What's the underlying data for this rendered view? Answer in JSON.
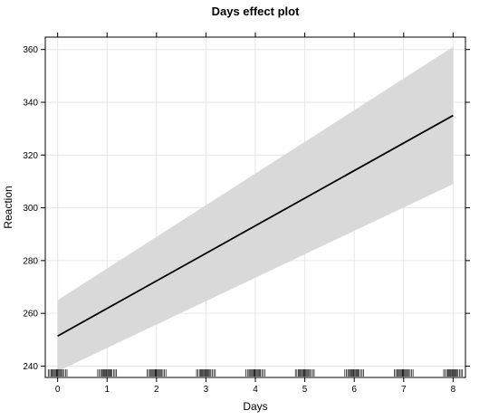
{
  "chart_data": {
    "type": "line",
    "title": "Days effect plot",
    "xlabel": "Days",
    "ylabel": "Reaction",
    "xlim": [
      -0.25,
      8.25
    ],
    "ylim": [
      235.7,
      364.7
    ],
    "x_ticks": [
      0,
      1,
      2,
      3,
      4,
      5,
      6,
      7,
      8
    ],
    "y_ticks": [
      240,
      260,
      280,
      300,
      320,
      340,
      360
    ],
    "grid": true,
    "series": [
      {
        "x": [
          0,
          8
        ],
        "y": [
          251.4,
          335.0
        ],
        "lower": [
          238.0,
          309.0
        ],
        "upper": [
          265.0,
          361.0
        ]
      }
    ],
    "rug_x": [
      0,
      1,
      2,
      3,
      4,
      5,
      6,
      7,
      8
    ],
    "colors": {
      "line": "#000000",
      "band": "#d9d9d9",
      "grid": "#e6e6e6",
      "frame": "#000000"
    }
  }
}
